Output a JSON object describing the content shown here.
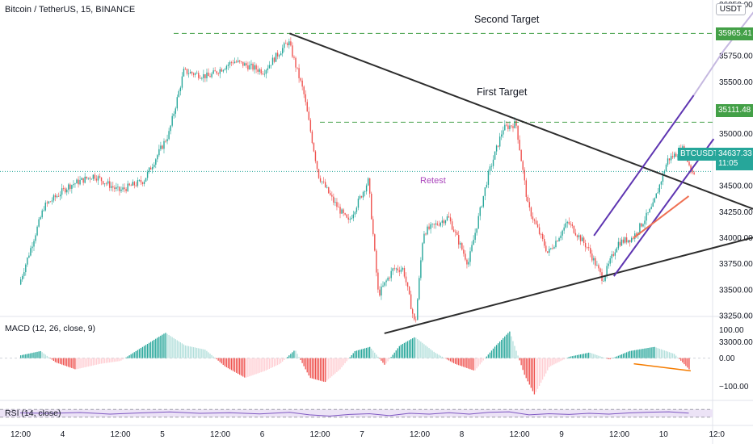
{
  "header": {
    "title": "Bitcoin / TetherUS, 15, BINANCE",
    "currency_button": "USDT"
  },
  "colors": {
    "up": "#26a69a",
    "down": "#ef5350",
    "trendline": "#2d2d2d",
    "target_line": "#43a047",
    "channel": "#5e35b1",
    "projection": "#c5b8e0",
    "retest_line": "#ef7053",
    "rsi_band": "#ece3f6",
    "rsi_line": "#7e57c2"
  },
  "annotations": {
    "second_target": "Second Target",
    "first_target": "First Target",
    "retest": "Retest"
  },
  "price_tags": {
    "second_target_value": "35965.41",
    "first_target_value": "35111.48",
    "symbol": "BTCUSDT",
    "last_price": "34637.33",
    "countdown": "11:05"
  },
  "chart_data": {
    "type": "candlestick",
    "symbol": "BTCUSDT",
    "interval": "15",
    "x_tick_labels": [
      "12:00",
      "4",
      "12:00",
      "5",
      "12:00",
      "6",
      "12:00",
      "7",
      "12:00",
      "8",
      "12:00",
      "9",
      "12:00",
      "10",
      "12:0"
    ],
    "price_axis": {
      "ticks": [
        33000,
        33250,
        33500,
        33750,
        34000,
        34250,
        34500,
        34750,
        35000,
        35250,
        35500,
        35750
      ],
      "tick_labels": [
        "33000.00",
        "33250.00",
        "33500.00",
        "33750.00",
        "34000.00",
        "34250.00",
        "34500.00",
        "34750.00",
        "35000.00",
        "35250.00",
        "35500.00",
        "35750.00"
      ],
      "range": [
        32870,
        36170
      ],
      "partial_top_label": "36050.00"
    },
    "price_path": [
      [
        0.0,
        33550
      ],
      [
        0.25,
        34300
      ],
      [
        0.5,
        34500
      ],
      [
        0.75,
        34600
      ],
      [
        1.0,
        34450
      ],
      [
        1.25,
        34550
      ],
      [
        1.5,
        35000
      ],
      [
        1.65,
        35600
      ],
      [
        1.9,
        35550
      ],
      [
        2.15,
        35700
      ],
      [
        2.45,
        35600
      ],
      [
        2.7,
        35890
      ],
      [
        2.85,
        35400
      ],
      [
        3.0,
        34600
      ],
      [
        3.15,
        34350
      ],
      [
        3.3,
        34150
      ],
      [
        3.5,
        34550
      ],
      [
        3.6,
        33450
      ],
      [
        3.75,
        33700
      ],
      [
        3.85,
        33700
      ],
      [
        3.97,
        33150
      ],
      [
        4.05,
        34050
      ],
      [
        4.3,
        34200
      ],
      [
        4.5,
        33750
      ],
      [
        4.7,
        34600
      ],
      [
        4.85,
        35050
      ],
      [
        4.98,
        35100
      ],
      [
        5.1,
        34300
      ],
      [
        5.3,
        33850
      ],
      [
        5.5,
        34150
      ],
      [
        5.7,
        33900
      ],
      [
        5.85,
        33600
      ],
      [
        6.0,
        33950
      ],
      [
        6.15,
        34000
      ],
      [
        6.35,
        34300
      ],
      [
        6.5,
        34750
      ],
      [
        6.65,
        34850
      ],
      [
        6.75,
        34630
      ]
    ],
    "horizontal_levels": [
      {
        "label": "Second Target",
        "value": 35965.41
      },
      {
        "label": "First Target",
        "value": 35111.48
      },
      {
        "label": "BTCUSDT",
        "value": 34637.33
      }
    ],
    "trendlines": [
      {
        "name": "descending",
        "from": [
          2.7,
          35965
        ],
        "to": [
          7.86,
          34090
        ]
      },
      {
        "name": "ascending",
        "from": [
          3.65,
          33080
        ],
        "to": [
          9.1,
          34440
        ]
      },
      {
        "name": "channel_lower",
        "from": [
          5.95,
          33630
        ],
        "to": [
          6.95,
          34950
        ]
      },
      {
        "name": "channel_upper",
        "from": [
          5.75,
          34020
        ],
        "to": [
          6.75,
          35370
        ]
      },
      {
        "name": "retest",
        "from": [
          6.15,
          34000
        ],
        "to": [
          6.7,
          34400
        ]
      },
      {
        "name": "projection",
        "from": [
          7.05,
          35800
        ],
        "to": [
          7.35,
          36170
        ]
      }
    ],
    "macd": {
      "label": "MACD (12, 26, close, 9)",
      "ticks": [
        -100,
        0,
        100
      ],
      "tick_labels": [
        "−100.00",
        "0.00",
        "100.00"
      ],
      "range": [
        -150,
        125
      ],
      "histogram": [
        [
          0.0,
          10
        ],
        [
          0.2,
          25
        ],
        [
          0.35,
          -15
        ],
        [
          0.55,
          -40
        ],
        [
          0.8,
          -20
        ],
        [
          1.0,
          -10
        ],
        [
          1.2,
          35
        ],
        [
          1.45,
          90
        ],
        [
          1.65,
          45
        ],
        [
          1.85,
          30
        ],
        [
          2.05,
          -30
        ],
        [
          2.25,
          -70
        ],
        [
          2.45,
          -45
        ],
        [
          2.6,
          -20
        ],
        [
          2.75,
          30
        ],
        [
          2.9,
          -70
        ],
        [
          3.05,
          -85
        ],
        [
          3.2,
          -40
        ],
        [
          3.35,
          25
        ],
        [
          3.5,
          40
        ],
        [
          3.65,
          -25
        ],
        [
          3.8,
          45
        ],
        [
          3.95,
          75
        ],
        [
          4.15,
          20
        ],
        [
          4.35,
          -20
        ],
        [
          4.55,
          -45
        ],
        [
          4.75,
          40
        ],
        [
          4.9,
          95
        ],
        [
          5.05,
          -60
        ],
        [
          5.15,
          -130
        ],
        [
          5.3,
          -30
        ],
        [
          5.5,
          5
        ],
        [
          5.7,
          20
        ],
        [
          5.9,
          -5
        ],
        [
          6.1,
          25
        ],
        [
          6.35,
          40
        ],
        [
          6.55,
          15
        ],
        [
          6.7,
          -40
        ]
      ],
      "line_segment": {
        "from": [
          6.15,
          -20
        ],
        "to": [
          6.72,
          -45
        ]
      }
    },
    "rsi": {
      "label": "RSI (14, close)",
      "path": [
        [
          0.0,
          52
        ],
        [
          0.3,
          50
        ],
        [
          0.6,
          54
        ],
        [
          0.9,
          46
        ],
        [
          1.2,
          52
        ],
        [
          1.5,
          57
        ],
        [
          1.8,
          50
        ],
        [
          2.1,
          53
        ],
        [
          2.4,
          47
        ],
        [
          2.7,
          55
        ],
        [
          2.9,
          42
        ],
        [
          3.1,
          36
        ],
        [
          3.3,
          44
        ],
        [
          3.5,
          48
        ],
        [
          3.7,
          38
        ],
        [
          3.9,
          50
        ],
        [
          4.1,
          46
        ],
        [
          4.3,
          53
        ],
        [
          4.5,
          46
        ],
        [
          4.7,
          55
        ],
        [
          4.9,
          58
        ],
        [
          5.1,
          42
        ],
        [
          5.3,
          48
        ],
        [
          5.5,
          44
        ],
        [
          5.7,
          50
        ],
        [
          5.9,
          46
        ],
        [
          6.1,
          52
        ],
        [
          6.3,
          56
        ],
        [
          6.5,
          58
        ],
        [
          6.7,
          51
        ]
      ]
    }
  }
}
